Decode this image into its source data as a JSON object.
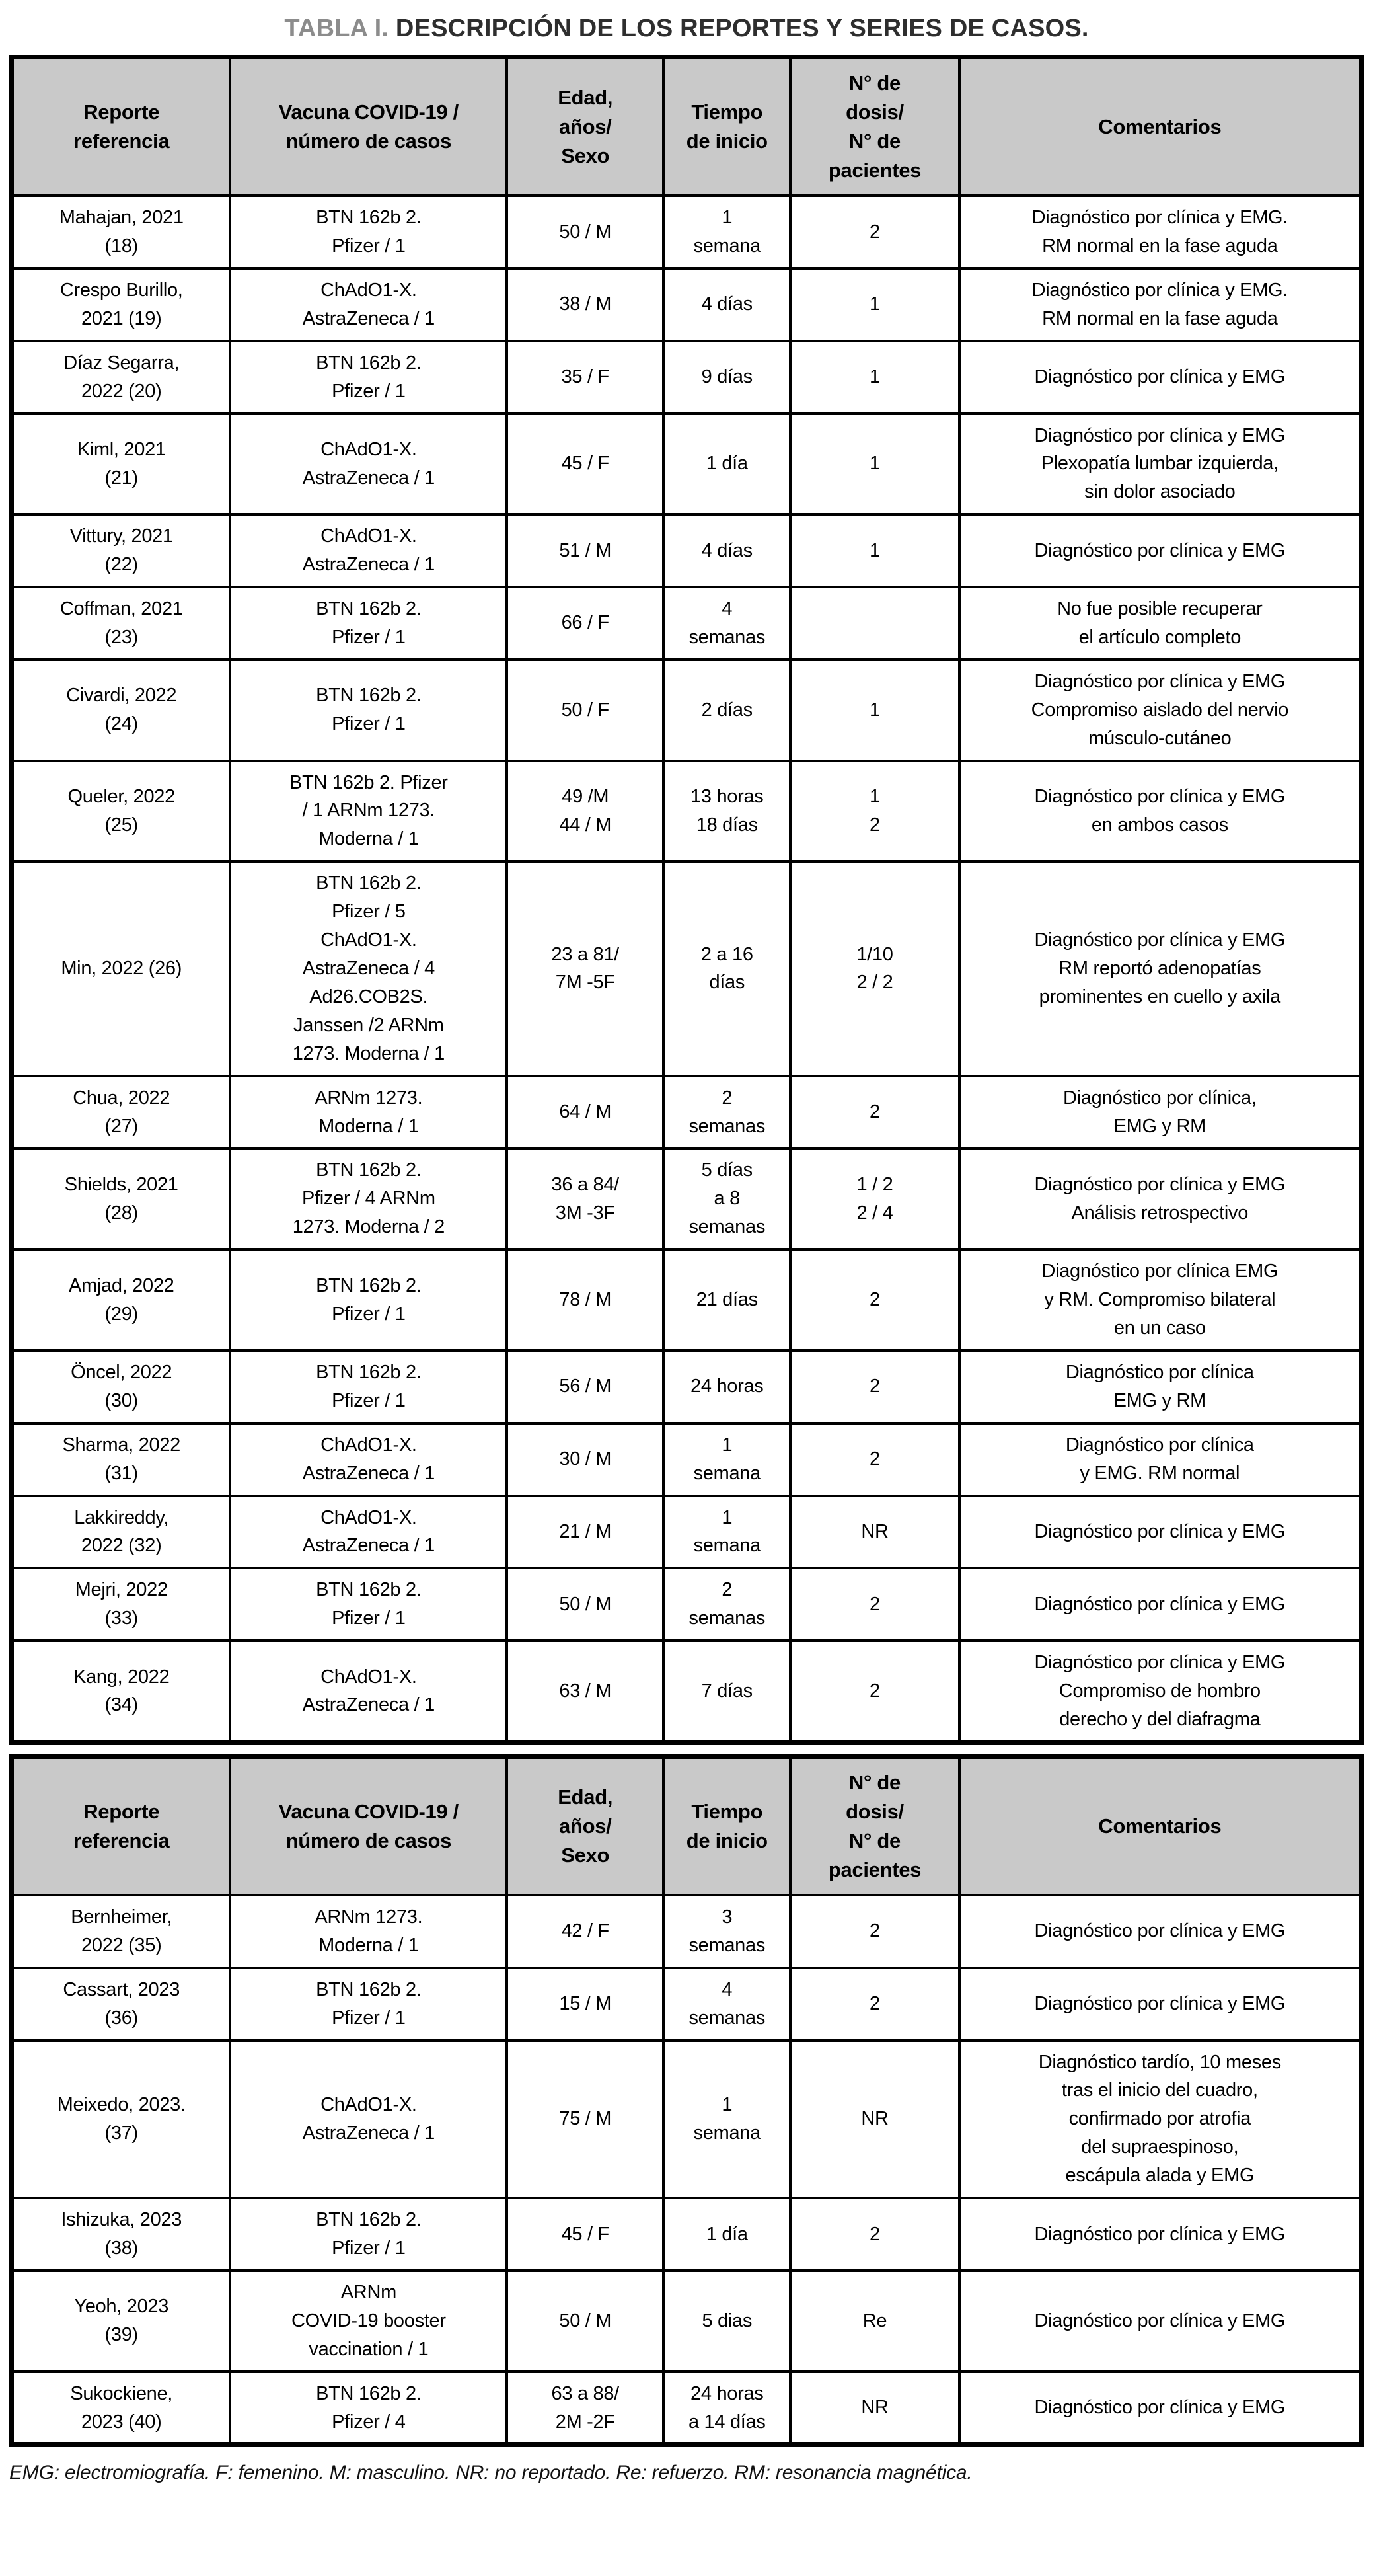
{
  "title": {
    "label": "TABLA I.",
    "text": "DESCRIPCIÓN DE LOS REPORTES Y SERIES DE CASOS."
  },
  "colors": {
    "header_bg": "#c9c9c9",
    "border": "#000000",
    "title_label": "#8c8c8c",
    "title_text": "#2e2e2e"
  },
  "columns": [
    "Reporte\nreferencia",
    "Vacuna COVID-19 /\nnúmero de casos",
    "Edad,\naños/\nSexo",
    "Tiempo\nde inicio",
    "N° de\ndosis/\nN° de\npacientes",
    "Comentarios"
  ],
  "sections": [
    {
      "rows": [
        {
          "ref": "Mahajan, 2021\n(18)",
          "vacuna": "BTN 162b 2.\nPfizer / 1",
          "edad": "50 / M",
          "tiempo": "1\nsemana",
          "dosis": "2",
          "comentarios": "Diagnóstico por clínica y EMG.\nRM normal en la fase aguda"
        },
        {
          "ref": "Crespo Burillo,\n2021 (19)",
          "vacuna": "ChAdO1-X.\nAstraZeneca / 1",
          "edad": "38 / M",
          "tiempo": "4 días",
          "dosis": "1",
          "comentarios": "Diagnóstico por clínica y EMG.\nRM normal en la fase aguda"
        },
        {
          "ref": "Díaz Segarra,\n2022 (20)",
          "vacuna": "BTN 162b 2.\nPfizer / 1",
          "edad": "35 / F",
          "tiempo": "9 días",
          "dosis": "1",
          "comentarios": "Diagnóstico por clínica y EMG"
        },
        {
          "ref": "Kiml, 2021\n(21)",
          "vacuna": "ChAdO1-X.\nAstraZeneca / 1",
          "edad": "45 / F",
          "tiempo": "1 día",
          "dosis": "1",
          "comentarios": "Diagnóstico por clínica y EMG\nPlexopatía lumbar izquierda,\nsin dolor asociado"
        },
        {
          "ref": "Vittury, 2021\n(22)",
          "vacuna": "ChAdO1-X.\nAstraZeneca / 1",
          "edad": "51 / M",
          "tiempo": "4 días",
          "dosis": "1",
          "comentarios": "Diagnóstico por clínica y EMG"
        },
        {
          "ref": "Coffman, 2021\n(23)",
          "vacuna": "BTN 162b 2.\nPfizer / 1",
          "edad": "66 / F",
          "tiempo": "4\nsemanas",
          "dosis": "",
          "comentarios": "No fue posible recuperar\nel artículo completo"
        },
        {
          "ref": "Civardi, 2022\n(24)",
          "vacuna": "BTN 162b 2.\nPfizer / 1",
          "edad": "50 / F",
          "tiempo": "2 días",
          "dosis": "1",
          "comentarios": "Diagnóstico por clínica y EMG\nCompromiso aislado del nervio\nmúsculo-cutáneo"
        },
        {
          "ref": "Queler, 2022\n(25)",
          "vacuna": "BTN 162b 2. Pfizer\n/ 1 ARNm 1273.\nModerna / 1",
          "edad": "49 /M\n44 / M",
          "tiempo": "13 horas\n18 días",
          "dosis": "1\n2",
          "comentarios": "Diagnóstico por clínica y EMG\nen ambos casos"
        },
        {
          "ref": "Min, 2022 (26)",
          "vacuna": "BTN 162b 2.\nPfizer / 5\nChAdO1-X.\nAstraZeneca / 4\nAd26.COB2S.\nJanssen /2 ARNm\n1273. Moderna / 1",
          "edad": "23 a 81/\n7M -5F",
          "tiempo": "2 a 16\ndías",
          "dosis": "1/10\n2 / 2",
          "comentarios": "Diagnóstico por clínica y EMG\nRM reportó adenopatías\nprominentes en cuello y axila"
        },
        {
          "ref": "Chua, 2022\n(27)",
          "vacuna": "ARNm 1273.\nModerna / 1",
          "edad": "64 / M",
          "tiempo": "2\nsemanas",
          "dosis": "2",
          "comentarios": "Diagnóstico por clínica,\nEMG y RM"
        },
        {
          "ref": "Shields, 2021\n(28)",
          "vacuna": "BTN 162b 2.\nPfizer / 4 ARNm\n1273. Moderna / 2",
          "edad": "36 a 84/\n3M -3F",
          "tiempo": "5 días\na 8\nsemanas",
          "dosis": "1 / 2\n2 / 4",
          "comentarios": "Diagnóstico por clínica y EMG\nAnálisis retrospectivo"
        },
        {
          "ref": "Amjad, 2022\n(29)",
          "vacuna": "BTN 162b 2.\nPfizer / 1",
          "edad": "78 / M",
          "tiempo": "21 días",
          "dosis": "2",
          "comentarios": "Diagnóstico por clínica EMG\ny RM. Compromiso bilateral\nen un caso"
        },
        {
          "ref": "Öncel, 2022\n(30)",
          "vacuna": "BTN 162b 2.\nPfizer / 1",
          "edad": "56 / M",
          "tiempo": "24 horas",
          "dosis": "2",
          "comentarios": "Diagnóstico por clínica\nEMG y RM"
        },
        {
          "ref": "Sharma, 2022\n(31)",
          "vacuna": "ChAdO1-X.\nAstraZeneca / 1",
          "edad": "30 / M",
          "tiempo": "1\nsemana",
          "dosis": "2",
          "comentarios": "Diagnóstico por clínica\ny EMG. RM normal"
        },
        {
          "ref": "Lakkireddy,\n2022 (32)",
          "vacuna": "ChAdO1-X.\nAstraZeneca / 1",
          "edad": "21 / M",
          "tiempo": "1\nsemana",
          "dosis": "NR",
          "comentarios": "Diagnóstico por clínica y EMG"
        },
        {
          "ref": "Mejri, 2022\n(33)",
          "vacuna": "BTN 162b 2.\nPfizer / 1",
          "edad": "50 / M",
          "tiempo": "2\nsemanas",
          "dosis": "2",
          "comentarios": "Diagnóstico por clínica y EMG"
        },
        {
          "ref": "Kang, 2022\n(34)",
          "vacuna": "ChAdO1-X.\nAstraZeneca / 1",
          "edad": "63 / M",
          "tiempo": "7 días",
          "dosis": "2",
          "comentarios": "Diagnóstico por clínica y EMG\nCompromiso de hombro\nderecho y del diafragma"
        }
      ]
    },
    {
      "rows": [
        {
          "ref": "Bernheimer,\n2022 (35)",
          "vacuna": "ARNm 1273.\nModerna / 1",
          "edad": "42 / F",
          "tiempo": "3\nsemanas",
          "dosis": "2",
          "comentarios": "Diagnóstico por clínica y EMG"
        },
        {
          "ref": "Cassart, 2023\n(36)",
          "vacuna": "BTN 162b 2.\nPfizer / 1",
          "edad": "15 / M",
          "tiempo": "4\nsemanas",
          "dosis": "2",
          "comentarios": "Diagnóstico por clínica y EMG"
        },
        {
          "ref": "Meixedo, 2023.\n(37)",
          "vacuna": "ChAdO1-X.\nAstraZeneca / 1",
          "edad": "75 / M",
          "tiempo": "1\nsemana",
          "dosis": "NR",
          "comentarios": "Diagnóstico tardío, 10 meses\ntras el inicio del cuadro,\nconfirmado por atrofia\ndel supraespinoso,\nescápula alada y EMG"
        },
        {
          "ref": "Ishizuka, 2023\n(38)",
          "vacuna": "BTN 162b 2.\nPfizer / 1",
          "edad": "45 / F",
          "tiempo": "1 día",
          "dosis": "2",
          "comentarios": "Diagnóstico por clínica y EMG"
        },
        {
          "ref": "Yeoh, 2023\n(39)",
          "vacuna": "ARNm\nCOVID-19 booster\nvaccination / 1",
          "edad": "50 / M",
          "tiempo": "5 dias",
          "dosis": "Re",
          "comentarios": "Diagnóstico por clínica y EMG"
        },
        {
          "ref": "Sukockiene,\n2023 (40)",
          "vacuna": "BTN 162b 2.\nPfizer / 4",
          "edad": "63 a 88/\n2M -2F",
          "tiempo": "24 horas\na 14 días",
          "dosis": "NR",
          "comentarios": "Diagnóstico por clínica y EMG"
        }
      ]
    }
  ],
  "footnote": "EMG: electromiografía. F: femenino. M: masculino. NR: no reportado. Re: refuerzo. RM: resonancia magnética."
}
